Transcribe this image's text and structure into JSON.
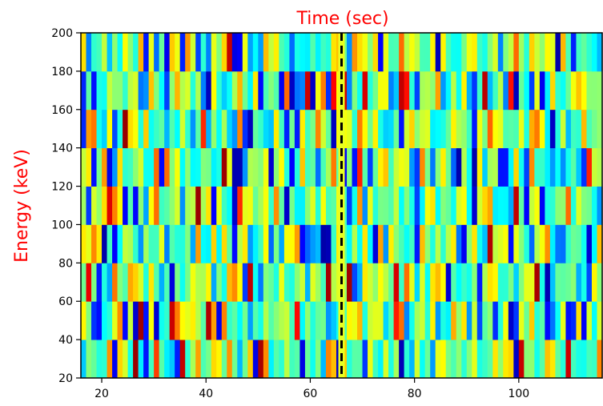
{
  "chart_data": {
    "type": "heatmap",
    "title": "Time (sec)",
    "xlabel": "",
    "ylabel": "Energy (keV)",
    "title_color": "#ff0000",
    "ylabel_color": "#ff0000",
    "xlim": [
      16,
      116
    ],
    "ylim": [
      20,
      200
    ],
    "x_ticks": [
      20,
      40,
      60,
      80,
      100
    ],
    "y_ticks": [
      20,
      40,
      60,
      80,
      100,
      120,
      140,
      160,
      180,
      200
    ],
    "colormap": "jet",
    "energy_bands": [
      [
        20,
        40
      ],
      [
        40,
        60
      ],
      [
        60,
        80
      ],
      [
        80,
        100
      ],
      [
        100,
        120
      ],
      [
        120,
        140
      ],
      [
        140,
        160
      ],
      [
        160,
        180
      ],
      [
        180,
        200
      ]
    ],
    "time_bin_width": 1,
    "time_start": 16,
    "time_end": 116,
    "value_range": [
      0,
      1
    ],
    "markers": [
      {
        "name": "",
        "x": 66,
        "style": "dashed",
        "color": "#000000",
        "highlight": "#e8ff20"
      }
    ],
    "grid": false
  }
}
